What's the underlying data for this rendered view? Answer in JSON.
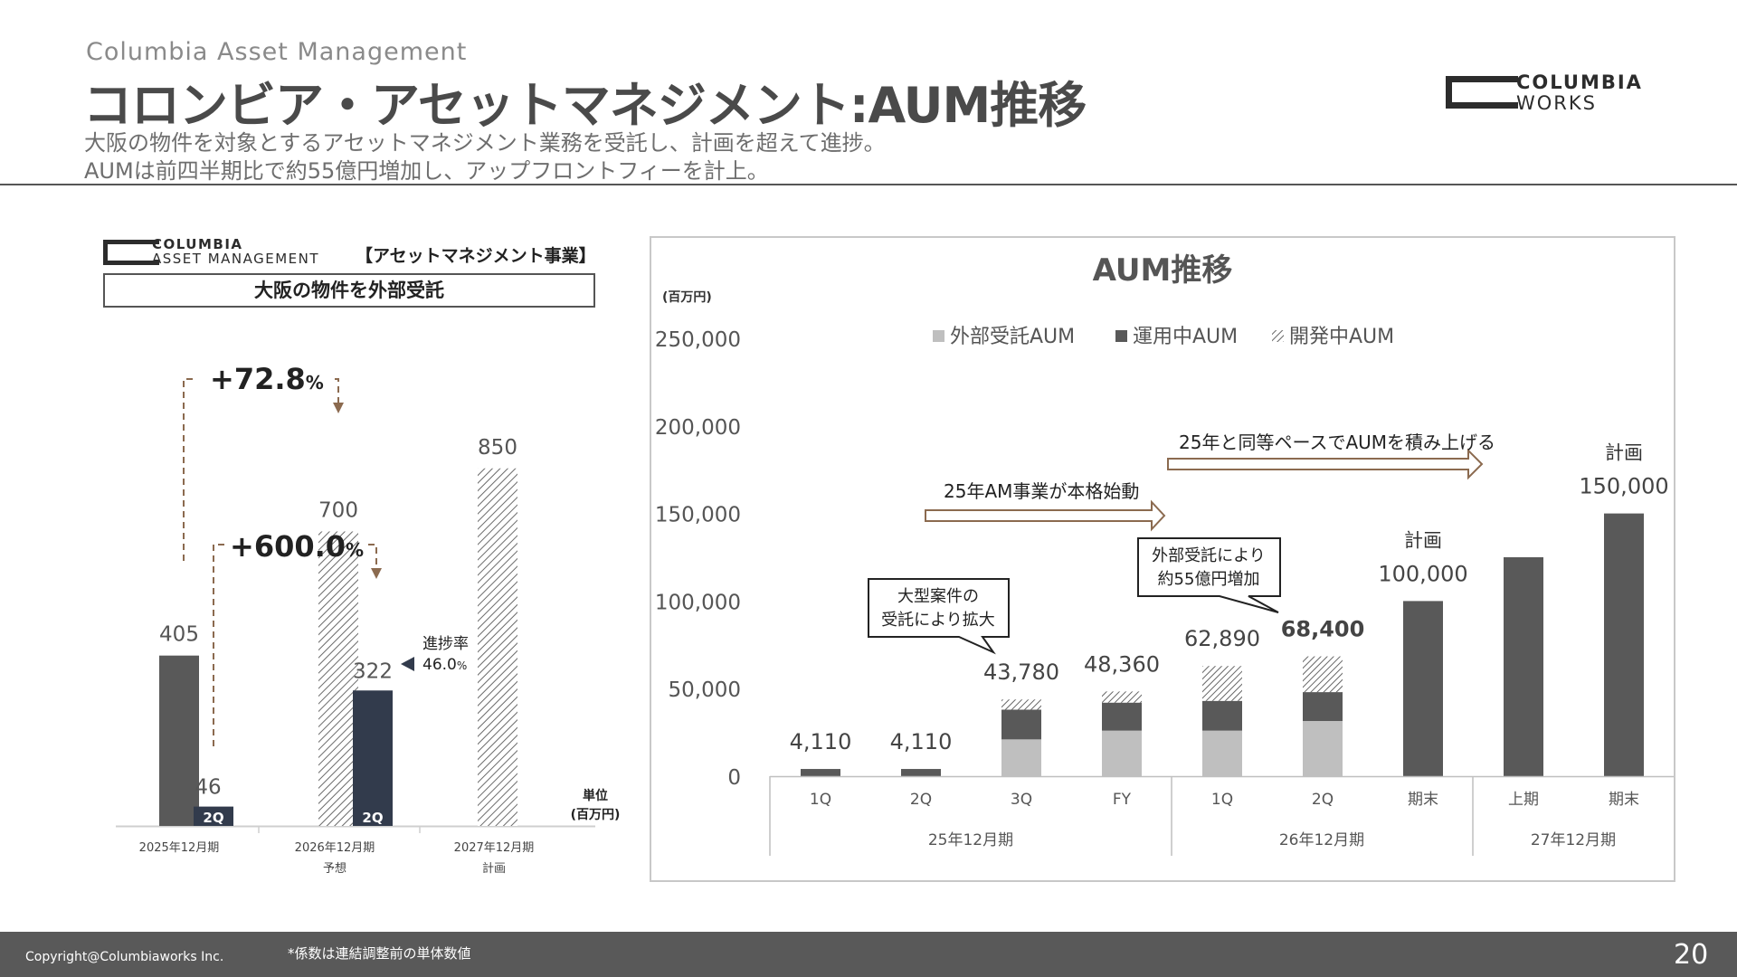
{
  "header": {
    "subtitle": "Columbia Asset Management",
    "title": "コロンビア・アセットマネジメント:AUM推移",
    "desc_line1": "大阪の物件を対象とするアセットマネジメント業務を受託し、計画を超えて進捗。",
    "desc_line2": "AUMは前四半期比で約55億円増加し、アップフロントフィーを計上。"
  },
  "logo": {
    "line1": "COLUMBIA",
    "line2": "WORKS"
  },
  "sub_logo": {
    "line1": "COLUMBIA",
    "line2": "ASSET MANAGEMENT"
  },
  "left_panel": {
    "section_tag": "【アセットマネジメント事業】",
    "box_title": "大阪の物件を外部受託"
  },
  "footer": {
    "copyright": "Copyright@Columbiaworks Inc.",
    "note": "*係数は連結調整前の単体数値",
    "page": "20"
  },
  "colors": {
    "dark_gray": "#595959",
    "light_gray": "#bfbfbf",
    "navy": "#323b4c",
    "arrow_brown": "#8b6a4f"
  },
  "chart_data": [
    {
      "type": "bar",
      "unit": "単位\n(百万円)",
      "unit_line1": "単位",
      "unit_line2": "(百万円)",
      "categories": [
        {
          "line1": "2025年12月期",
          "line2": ""
        },
        {
          "line1": "2026年12月期",
          "line2": "予想"
        },
        {
          "line1": "2027年12月期",
          "line2": "計画"
        }
      ],
      "full_year_bars": [
        {
          "category": "2025年12月期",
          "value": 405,
          "label": "405",
          "style": "solid-dark"
        },
        {
          "category": "2026年12月期",
          "value": 700,
          "label": "700",
          "style": "hatched"
        },
        {
          "category": "2027年12月期",
          "value": 850,
          "label": "850",
          "style": "hatched"
        }
      ],
      "q2_bars": [
        {
          "category": "2025年12月期",
          "value": 46,
          "label": "46",
          "tag": "2Q"
        },
        {
          "category": "2026年12月期",
          "value": 322,
          "label": "322",
          "tag": "2Q"
        }
      ],
      "annotations": {
        "growth_full_year": "+72.8",
        "growth_q2": "+600.0",
        "percent_sign": "%",
        "progress_label": "進捗率",
        "progress_value": "46.0",
        "progress_pct": "%",
        "progress_rate": 0.46
      }
    },
    {
      "type": "bar",
      "stacked": true,
      "title": "AUM推移",
      "ylabel": "(百万円)",
      "ylim": [
        0,
        250000
      ],
      "yticks": [
        "0",
        "50,000",
        "100,000",
        "150,000",
        "200,000",
        "250,000"
      ],
      "ytick_values": [
        0,
        50000,
        100000,
        150000,
        200000,
        250000
      ],
      "legend": [
        "外部受託AUM",
        "運用中AUM",
        "開発中AUM"
      ],
      "legend_placement": "top-center",
      "categories": [
        "1Q",
        "2Q",
        "3Q",
        "FY",
        "1Q",
        "2Q",
        "期末",
        "上期",
        "期末"
      ],
      "groups": [
        {
          "label": "25年12月期",
          "span": 4
        },
        {
          "label": "26年12月期",
          "span": 3
        },
        {
          "label": "27年12月期",
          "span": 2
        }
      ],
      "series": [
        {
          "name": "外部受託AUM",
          "color": "#bfbfbf",
          "values": [
            0,
            0,
            21000,
            26000,
            26000,
            31500,
            0,
            0,
            0
          ]
        },
        {
          "name": "運用中AUM",
          "color": "#595959",
          "values": [
            4110,
            4110,
            17000,
            16000,
            17000,
            16500,
            100000,
            125000,
            150000
          ]
        },
        {
          "name": "開発中AUM",
          "color": "hatched",
          "values": [
            0,
            0,
            5780,
            6360,
            19890,
            20400,
            0,
            0,
            0
          ]
        }
      ],
      "totals": [
        4110,
        4110,
        43780,
        48360,
        62890,
        68400,
        100000,
        125000,
        150000
      ],
      "total_labels": [
        "4,110",
        "4,110",
        "43,780",
        "48,360",
        "62,890",
        "68,400",
        "100,000",
        "",
        "150,000"
      ],
      "plan_labels": [
        "",
        "",
        "",
        "",
        "",
        "",
        "計画",
        "",
        "計画"
      ],
      "bold_label_index": 5,
      "annotations": {
        "callout_1": [
          "大型案件の",
          "受託により拡大"
        ],
        "callout_2": [
          "外部受託により",
          "約55億円増加"
        ],
        "arrow_1": "25年AM事業が本格始動",
        "arrow_2": "25年と同等ペースでAUMを積み上げる"
      }
    }
  ]
}
